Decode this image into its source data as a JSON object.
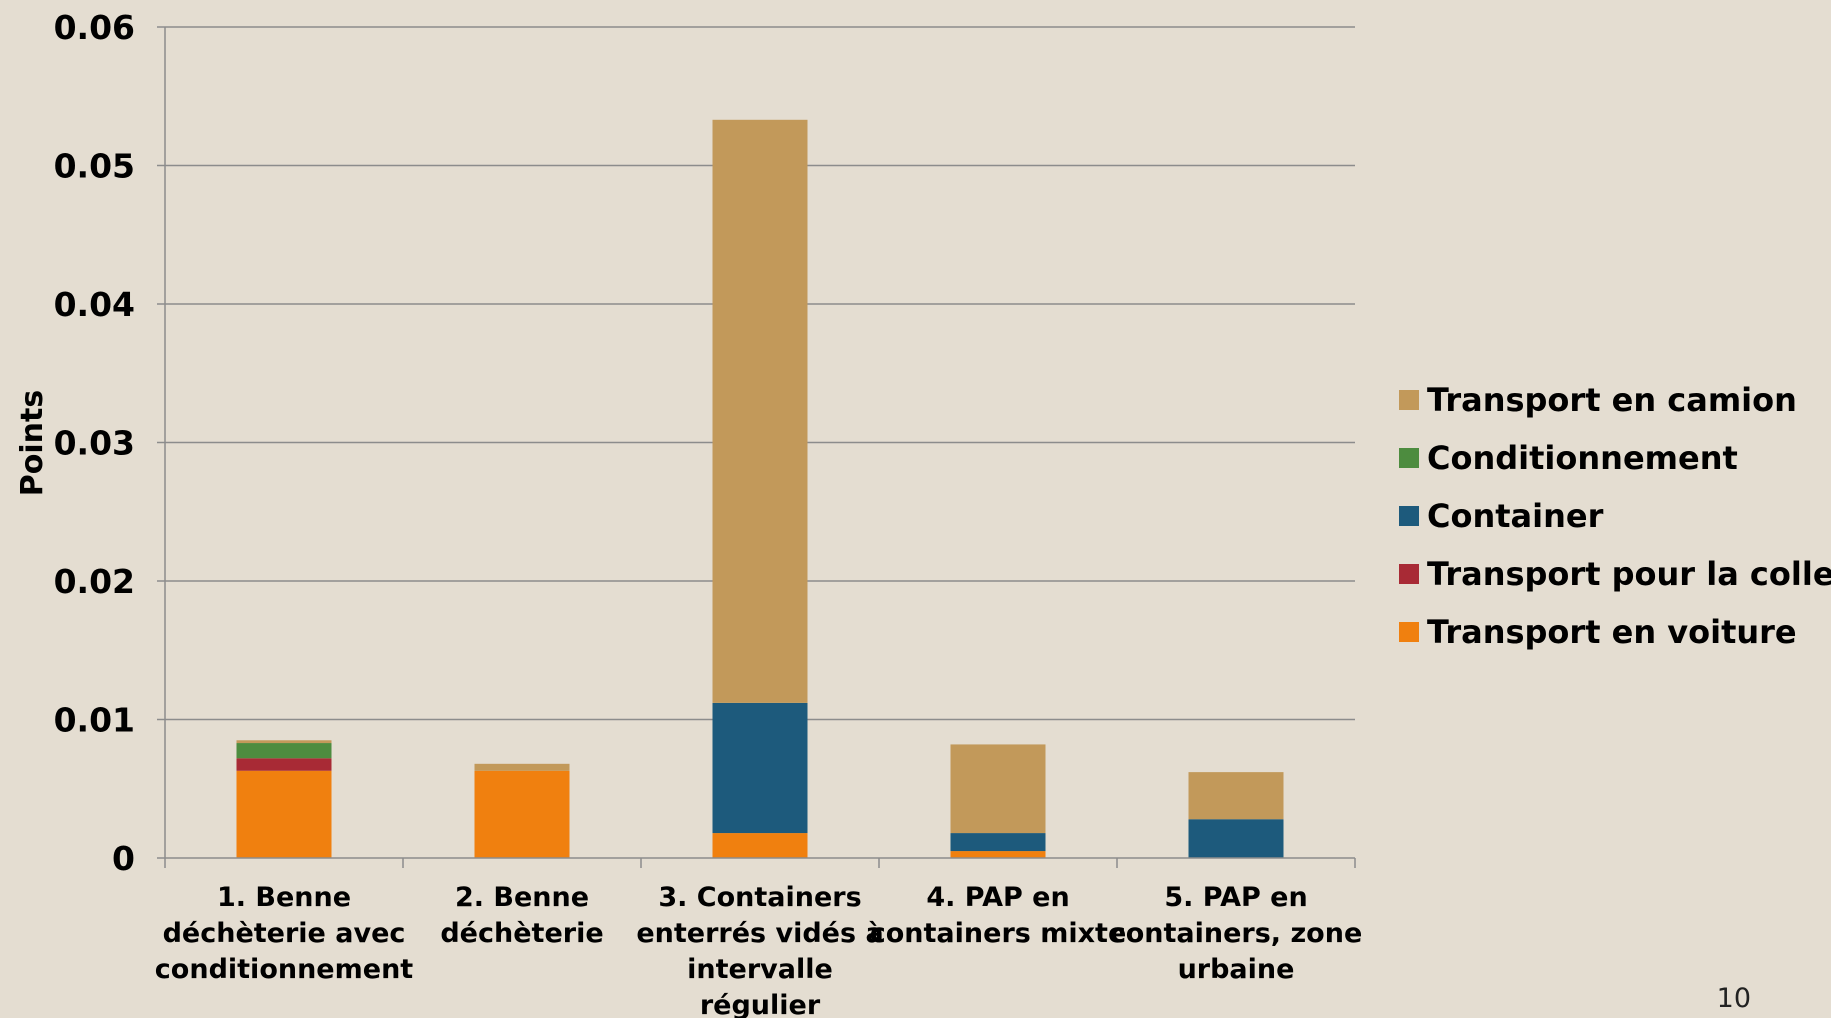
{
  "page_number": "10",
  "chart_data": {
    "type": "bar",
    "stacked": true,
    "title": "",
    "xlabel": "",
    "ylabel": "Points",
    "ylim": [
      0,
      0.06
    ],
    "yticks": [
      "0",
      "0.01",
      "0.02",
      "0.03",
      "0.04",
      "0.05",
      "0.06"
    ],
    "ytick_values": [
      0,
      0.01,
      0.02,
      0.03,
      0.04,
      0.05,
      0.06
    ],
    "grid": true,
    "legend_position": "right",
    "categories": [
      [
        "1. Benne",
        "déchèterie avec",
        "conditionnement"
      ],
      [
        "2. Benne",
        "déchèterie"
      ],
      [
        "3. Containers",
        "enterrés vidés à",
        "intervalle",
        "régulier"
      ],
      [
        "4. PAP en",
        "containers mixte"
      ],
      [
        "5. PAP en",
        "containers, zone",
        "urbaine"
      ]
    ],
    "series": [
      {
        "name": "Transport en voiture",
        "color": "#f0800f",
        "values": [
          0.0063,
          0.0063,
          0.0018,
          0.0005,
          0.0
        ]
      },
      {
        "name": "Transport pour la collecte",
        "color": "#a82a35",
        "values": [
          0.0009,
          0.0,
          0.0,
          0.0,
          0.0
        ]
      },
      {
        "name": "Container",
        "color": "#1d5a7c",
        "values": [
          0.0,
          0.0,
          0.0094,
          0.0013,
          0.0028
        ]
      },
      {
        "name": "Conditionnement",
        "color": "#4d8c3f",
        "values": [
          0.0011,
          0.0,
          0.0,
          0.0,
          0.0
        ]
      },
      {
        "name": "Transport en camion",
        "color": "#c2995a",
        "values": [
          0.0002,
          0.0005,
          0.0421,
          0.0064,
          0.0034
        ]
      }
    ],
    "legend_order": [
      "Transport en camion",
      "Conditionnement",
      "Container",
      "Transport pour la collecte",
      "Transport en voiture"
    ]
  }
}
